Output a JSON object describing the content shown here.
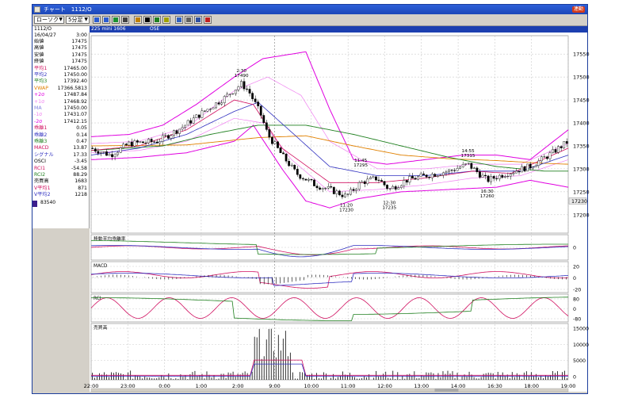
{
  "window": {
    "title": "チャート　1112/O",
    "badge": "連動"
  },
  "toolbar": {
    "chart_type": "ローソク",
    "interval": "5分足",
    "icons": [
      "grid-icon",
      "bars-icon",
      "candles-icon",
      "hl-icon",
      "ma-icon",
      "draw-icon",
      "pen-icon",
      "link-icon",
      "edit-icon",
      "copy-icon",
      "print-icon",
      "help-icon"
    ]
  },
  "infobar": {
    "symbol": "1112/O",
    "market": "225 mini 1606",
    "exchange": "OSE"
  },
  "sidebar": {
    "date": "16/04/27",
    "time": "3:00",
    "rows": [
      {
        "label": "始値",
        "value": "17475",
        "color": "#000000"
      },
      {
        "label": "高値",
        "value": "17475",
        "color": "#000000"
      },
      {
        "label": "安値",
        "value": "17475",
        "color": "#000000"
      },
      {
        "label": "終値",
        "value": "17475",
        "color": "#000000"
      },
      {
        "label": "平均1",
        "value": "17465.00",
        "color": "#d01060"
      },
      {
        "label": "平均2",
        "value": "17450.00",
        "color": "#3030c0"
      },
      {
        "label": "平均3",
        "value": "17392.40",
        "color": "#208020"
      },
      {
        "label": "VWAP",
        "value": "17366.5813",
        "color": "#e08000"
      },
      {
        "label": "+2σ",
        "value": "17487.84",
        "color": "#e000e0"
      },
      {
        "label": "+1σ",
        "value": "17468.92",
        "color": "#f080f0"
      },
      {
        "label": "MA",
        "value": "17450.00",
        "color": "#8080e0"
      },
      {
        "label": "-1σ",
        "value": "17431.07",
        "color": "#f080f0"
      },
      {
        "label": "-2σ",
        "value": "17412.15",
        "color": "#e000e0"
      },
      {
        "label": "乖離1",
        "value": "0.05",
        "color": "#d01060"
      },
      {
        "label": "乖離2",
        "value": "0.14",
        "color": "#3030c0"
      },
      {
        "label": "乖離3",
        "value": "0.47",
        "color": "#208020"
      },
      {
        "label": "MACD",
        "value": "13.87",
        "color": "#d01060"
      },
      {
        "label": "シグナル",
        "value": "17.33",
        "color": "#3030c0"
      },
      {
        "label": "OSCI",
        "value": "-3.45",
        "color": "#000000"
      },
      {
        "label": "RCI1",
        "value": "-54.58",
        "color": "#d01060"
      },
      {
        "label": "RCI2",
        "value": "88.29",
        "color": "#208020"
      },
      {
        "label": "売買高",
        "value": "1683",
        "color": "#000000"
      },
      {
        "label": "V平均1",
        "value": "871",
        "color": "#d01060"
      },
      {
        "label": "V平均2",
        "value": "1218",
        "color": "#3030c0"
      }
    ],
    "signal_label": "83540"
  },
  "colors": {
    "titlebar": "#1c47b8",
    "ma1": "#d01060",
    "ma2": "#3030c0",
    "ma3": "#208020",
    "vwap": "#e08000",
    "sigma2": "#e000e0",
    "sigma1": "#f080f0",
    "grid": "#c0c0c0"
  },
  "chart_data": {
    "type": "candlestick",
    "y_axis": {
      "ticks": [
        17550,
        17500,
        17450,
        17400,
        17350,
        17300,
        17250,
        17200
      ],
      "range": [
        17160,
        17590
      ]
    },
    "current_price_label": "17230",
    "x_ticks": [
      "22:00",
      "23:00",
      "0:00",
      "1:00",
      "2:00",
      "9:00",
      "10:00",
      "11:00",
      "12:00",
      "13:00",
      "14:00",
      "16:30",
      "18:00",
      "19:00"
    ],
    "annotations": [
      {
        "time": "2:30",
        "price": "17490",
        "t": 0.315,
        "p": 17490,
        "pos": "above"
      },
      {
        "time": "11:20",
        "price": "17230",
        "t": 0.535,
        "p": 17230,
        "pos": "below"
      },
      {
        "time": "11:45",
        "price": "17295",
        "t": 0.565,
        "p": 17295,
        "pos": "above"
      },
      {
        "time": "12:30",
        "price": "17235",
        "t": 0.625,
        "p": 17235,
        "pos": "below"
      },
      {
        "time": "14:55",
        "price": "17315",
        "t": 0.79,
        "p": 17315,
        "pos": "above"
      },
      {
        "time": "16:30",
        "price": "17260",
        "t": 0.83,
        "p": 17260,
        "pos": "below"
      }
    ],
    "price_path": [
      [
        0,
        17345
      ],
      [
        0.04,
        17330
      ],
      [
        0.08,
        17355
      ],
      [
        0.14,
        17360
      ],
      [
        0.19,
        17390
      ],
      [
        0.23,
        17420
      ],
      [
        0.28,
        17455
      ],
      [
        0.315,
        17485
      ],
      [
        0.33,
        17470
      ],
      [
        0.355,
        17420
      ],
      [
        0.37,
        17375
      ],
      [
        0.4,
        17330
      ],
      [
        0.43,
        17290
      ],
      [
        0.47,
        17265
      ],
      [
        0.5,
        17255
      ],
      [
        0.535,
        17240
      ],
      [
        0.565,
        17270
      ],
      [
        0.6,
        17280
      ],
      [
        0.625,
        17255
      ],
      [
        0.66,
        17275
      ],
      [
        0.7,
        17285
      ],
      [
        0.75,
        17295
      ],
      [
        0.79,
        17310
      ],
      [
        0.83,
        17275
      ],
      [
        0.87,
        17290
      ],
      [
        0.92,
        17305
      ],
      [
        0.96,
        17330
      ],
      [
        1.0,
        17360
      ]
    ],
    "overlays": {
      "ma1": [
        [
          0,
          17340
        ],
        [
          0.1,
          17350
        ],
        [
          0.2,
          17385
        ],
        [
          0.3,
          17450
        ],
        [
          0.34,
          17440
        ],
        [
          0.4,
          17345
        ],
        [
          0.5,
          17270
        ],
        [
          0.6,
          17270
        ],
        [
          0.7,
          17280
        ],
        [
          0.8,
          17295
        ],
        [
          0.88,
          17290
        ],
        [
          1.0,
          17345
        ]
      ],
      "ma2": [
        [
          0,
          17330
        ],
        [
          0.1,
          17345
        ],
        [
          0.2,
          17375
        ],
        [
          0.3,
          17425
        ],
        [
          0.35,
          17445
        ],
        [
          0.42,
          17380
        ],
        [
          0.5,
          17305
        ],
        [
          0.6,
          17285
        ],
        [
          0.7,
          17285
        ],
        [
          0.8,
          17295
        ],
        [
          0.9,
          17295
        ],
        [
          1.0,
          17330
        ]
      ],
      "ma3": [
        [
          0,
          17340
        ],
        [
          0.15,
          17350
        ],
        [
          0.25,
          17375
        ],
        [
          0.35,
          17395
        ],
        [
          0.45,
          17395
        ],
        [
          0.55,
          17375
        ],
        [
          0.65,
          17350
        ],
        [
          0.75,
          17325
        ],
        [
          0.85,
          17305
        ],
        [
          0.95,
          17295
        ],
        [
          1.0,
          17295
        ]
      ],
      "vwap": [
        [
          0,
          17350
        ],
        [
          0.2,
          17352
        ],
        [
          0.35,
          17368
        ],
        [
          0.45,
          17372
        ],
        [
          0.55,
          17350
        ],
        [
          0.65,
          17330
        ],
        [
          0.75,
          17322
        ],
        [
          0.85,
          17318
        ],
        [
          0.95,
          17312
        ],
        [
          1.0,
          17310
        ]
      ],
      "upper2": [
        [
          0,
          17370
        ],
        [
          0.08,
          17375
        ],
        [
          0.15,
          17395
        ],
        [
          0.22,
          17440
        ],
        [
          0.3,
          17500
        ],
        [
          0.36,
          17540
        ],
        [
          0.45,
          17555
        ],
        [
          0.5,
          17430
        ],
        [
          0.55,
          17320
        ],
        [
          0.62,
          17310
        ],
        [
          0.7,
          17320
        ],
        [
          0.78,
          17330
        ],
        [
          0.85,
          17330
        ],
        [
          0.92,
          17320
        ],
        [
          1.0,
          17385
        ]
      ],
      "lower2": [
        [
          0,
          17320
        ],
        [
          0.1,
          17325
        ],
        [
          0.2,
          17335
        ],
        [
          0.3,
          17360
        ],
        [
          0.34,
          17395
        ],
        [
          0.4,
          17300
        ],
        [
          0.45,
          17230
        ],
        [
          0.5,
          17215
        ],
        [
          0.56,
          17235
        ],
        [
          0.65,
          17250
        ],
        [
          0.75,
          17255
        ],
        [
          0.85,
          17260
        ],
        [
          0.92,
          17275
        ],
        [
          1.0,
          17260
        ]
      ],
      "upper1": [
        [
          0,
          17355
        ],
        [
          0.1,
          17360
        ],
        [
          0.2,
          17390
        ],
        [
          0.3,
          17470
        ],
        [
          0.37,
          17500
        ],
        [
          0.44,
          17460
        ],
        [
          0.5,
          17360
        ],
        [
          0.6,
          17300
        ],
        [
          0.7,
          17300
        ],
        [
          0.8,
          17310
        ],
        [
          0.9,
          17310
        ],
        [
          1.0,
          17355
        ]
      ],
      "lower1": [
        [
          0,
          17335
        ],
        [
          0.1,
          17340
        ],
        [
          0.2,
          17360
        ],
        [
          0.3,
          17410
        ],
        [
          0.36,
          17400
        ],
        [
          0.42,
          17320
        ],
        [
          0.5,
          17250
        ],
        [
          0.6,
          17255
        ],
        [
          0.7,
          17265
        ],
        [
          0.8,
          17280
        ],
        [
          0.9,
          17285
        ],
        [
          1.0,
          17320
        ]
      ]
    },
    "panels": [
      {
        "name": "移動平均乖離率",
        "ticks": [
          "0"
        ]
      },
      {
        "name": "MACD",
        "ticks": [
          "20",
          "0",
          "-20"
        ]
      },
      {
        "name": "RCI",
        "ticks": [
          "80",
          "0",
          "-80"
        ]
      },
      {
        "name": "売買高",
        "ticks": [
          "15000",
          "10000",
          "5000",
          "0"
        ]
      }
    ]
  }
}
